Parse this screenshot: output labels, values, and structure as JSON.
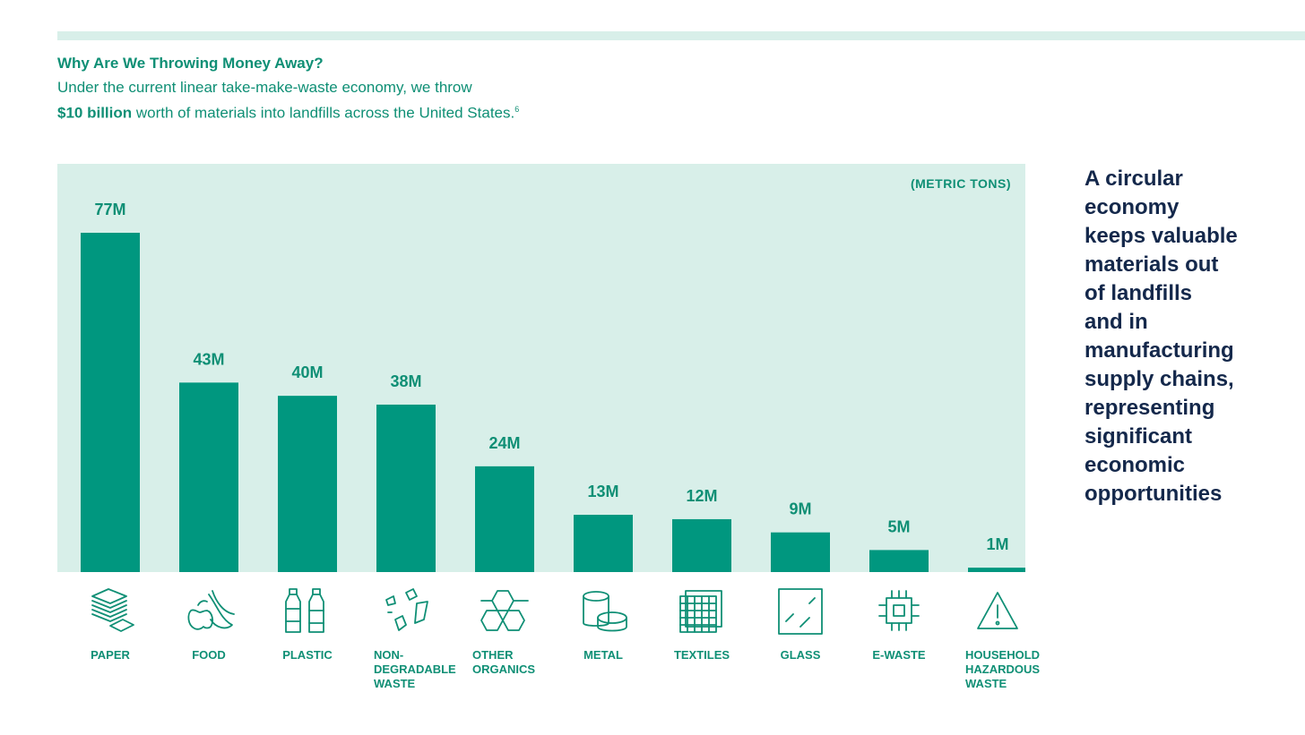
{
  "header": {
    "title": "Why Are We Throwing Money Away?",
    "intro_text": "Under the current linear take-make-waste economy, we throw",
    "intro_amount": "$10 billion",
    "intro_rest": " worth of materials into landfills across the United States.",
    "footnote": "6"
  },
  "chart_data": {
    "type": "bar",
    "units_label": "(METRIC TONS)",
    "categories": [
      "PAPER",
      "FOOD",
      "PLASTIC",
      "NON-DEGRADABLE WASTE",
      "OTHER ORGANICS",
      "METAL",
      "TEXTILES",
      "GLASS",
      "E-WASTE",
      "HOUSEHOLD HAZARDOUS WASTE"
    ],
    "category_lines": [
      [
        "PAPER"
      ],
      [
        "FOOD"
      ],
      [
        "PLASTIC"
      ],
      [
        "NON-",
        "DEGRADABLE",
        "WASTE"
      ],
      [
        "OTHER",
        "ORGANICS"
      ],
      [
        "METAL"
      ],
      [
        "TEXTILES"
      ],
      [
        "GLASS"
      ],
      [
        "E-WASTE"
      ],
      [
        "HOUSEHOLD",
        "HAZARDOUS",
        "WASTE"
      ]
    ],
    "values": [
      77,
      43,
      40,
      38,
      24,
      13,
      12,
      9,
      5,
      1
    ],
    "value_labels": [
      "77M",
      "43M",
      "40M",
      "38M",
      "24M",
      "13M",
      "12M",
      "9M",
      "5M",
      "1M"
    ],
    "icons": [
      "paper-stack-icon",
      "food-waste-icon",
      "plastic-bottles-icon",
      "debris-icon",
      "hexagon-network-icon",
      "metal-cans-icon",
      "textile-fabric-icon",
      "glass-pane-icon",
      "microchip-icon",
      "hazard-warning-icon"
    ],
    "ylim": [
      0,
      77
    ],
    "colors": {
      "bar": "#00977f",
      "panel": "#d8efe9",
      "text": "#0f8f75"
    }
  },
  "callout": {
    "text": "A circular economy keeps valuable materials out of landfills and in manufacturing supply chains, representing significant economic opportunities",
    "lines": [
      "A circular",
      "economy",
      "keeps valuable",
      "materials out",
      "of landfills",
      "and in",
      "manufacturing",
      "supply chains,",
      "representing",
      "significant",
      "economic",
      "opportunities"
    ],
    "color": "#14284b"
  }
}
